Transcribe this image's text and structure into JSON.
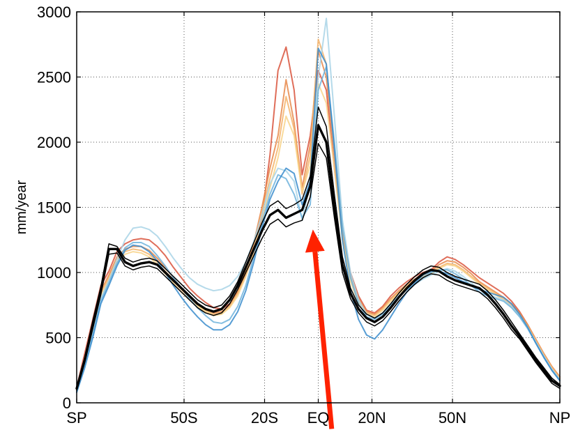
{
  "chart_data": {
    "type": "line",
    "title": "",
    "xlabel": "",
    "ylabel": "mm/year",
    "xlim": [
      -90,
      90
    ],
    "ylim": [
      0,
      3000
    ],
    "grid": "dotted",
    "x_ticks": [
      {
        "value": -90,
        "label": "SP"
      },
      {
        "value": -50,
        "label": "50S"
      },
      {
        "value": -20,
        "label": "20S"
      },
      {
        "value": 0,
        "label": "EQ"
      },
      {
        "value": 20,
        "label": "20N"
      },
      {
        "value": 50,
        "label": "50N"
      },
      {
        "value": 90,
        "label": "NP"
      }
    ],
    "y_ticks": [
      0,
      500,
      1000,
      1500,
      2000,
      2500,
      3000
    ],
    "x": [
      -90,
      -87,
      -84,
      -81,
      -78,
      -75,
      -72,
      -69,
      -66,
      -63,
      -60,
      -57,
      -54,
      -51,
      -48,
      -45,
      -42,
      -39,
      -36,
      -33,
      -30,
      -27,
      -24,
      -21,
      -18,
      -15,
      -12,
      -9,
      -6,
      -3,
      0,
      3,
      6,
      9,
      12,
      15,
      18,
      21,
      24,
      27,
      30,
      33,
      36,
      39,
      42,
      45,
      48,
      51,
      54,
      57,
      60,
      63,
      66,
      69,
      72,
      75,
      78,
      81,
      84,
      87,
      90
    ],
    "series": [
      {
        "color": "#d9533c",
        "values": [
          120,
          380,
          640,
          900,
          1010,
          1160,
          1220,
          1250,
          1260,
          1250,
          1200,
          1130,
          1040,
          960,
          880,
          820,
          770,
          730,
          720,
          760,
          850,
          980,
          1140,
          1420,
          1900,
          2550,
          2730,
          2400,
          1750,
          2050,
          2550,
          2400,
          1800,
          1300,
          1000,
          820,
          710,
          690,
          740,
          820,
          880,
          930,
          970,
          1000,
          1020,
          1080,
          1120,
          1100,
          1060,
          1010,
          960,
          920,
          880,
          840,
          780,
          700,
          600,
          480,
          360,
          260,
          180
        ]
      },
      {
        "color": "#e8884a",
        "values": [
          110,
          350,
          600,
          860,
          980,
          1120,
          1180,
          1200,
          1200,
          1170,
          1110,
          1040,
          960,
          880,
          810,
          760,
          720,
          690,
          700,
          750,
          860,
          1020,
          1230,
          1500,
          1800,
          2050,
          2480,
          2150,
          1650,
          1980,
          2700,
          2500,
          1900,
          1300,
          980,
          800,
          700,
          680,
          730,
          800,
          860,
          910,
          950,
          990,
          1010,
          1060,
          1090,
          1080,
          1040,
          990,
          930,
          890,
          850,
          810,
          760,
          690,
          600,
          490,
          380,
          280,
          200
        ]
      },
      {
        "color": "#f4b36a",
        "values": [
          105,
          330,
          580,
          840,
          960,
          1100,
          1160,
          1180,
          1170,
          1140,
          1080,
          1010,
          940,
          870,
          800,
          750,
          710,
          680,
          690,
          740,
          840,
          1000,
          1200,
          1460,
          1720,
          1960,
          2350,
          2100,
          1600,
          1900,
          2790,
          2600,
          1950,
          1320,
          960,
          780,
          690,
          670,
          720,
          790,
          850,
          900,
          940,
          980,
          1000,
          1040,
          1070,
          1060,
          1020,
          970,
          920,
          880,
          840,
          800,
          750,
          680,
          590,
          480,
          370,
          270,
          190
        ]
      },
      {
        "color": "#f8d48a",
        "values": [
          100,
          320,
          560,
          820,
          940,
          1080,
          1140,
          1160,
          1150,
          1120,
          1060,
          990,
          920,
          850,
          790,
          740,
          700,
          670,
          680,
          730,
          820,
          970,
          1160,
          1400,
          1650,
          1880,
          2200,
          2050,
          1620,
          1820,
          2450,
          2300,
          1800,
          1250,
          930,
          760,
          680,
          660,
          710,
          780,
          840,
          890,
          930,
          970,
          990,
          1030,
          1060,
          1050,
          1010,
          960,
          910,
          870,
          830,
          790,
          740,
          670,
          580,
          470,
          360,
          260,
          180
        ]
      },
      {
        "color": "#a8d4e6",
        "values": [
          90,
          300,
          540,
          800,
          940,
          1100,
          1250,
          1340,
          1350,
          1330,
          1280,
          1200,
          1110,
          1030,
          960,
          910,
          880,
          860,
          870,
          900,
          970,
          1080,
          1240,
          1440,
          1680,
          1800,
          1780,
          1700,
          1400,
          1700,
          2500,
          2950,
          2200,
          1400,
          1000,
          790,
          680,
          650,
          690,
          760,
          820,
          870,
          910,
          950,
          980,
          1010,
          1030,
          1010,
          970,
          920,
          870,
          840,
          810,
          790,
          740,
          670,
          580,
          470,
          360,
          260,
          180
        ]
      },
      {
        "color": "#6fb3dc",
        "values": [
          85,
          290,
          520,
          780,
          920,
          1070,
          1190,
          1230,
          1230,
          1200,
          1130,
          1050,
          960,
          880,
          800,
          730,
          670,
          620,
          610,
          640,
          740,
          900,
          1120,
          1380,
          1600,
          1750,
          1720,
          1600,
          1420,
          1520,
          2400,
          2580,
          2000,
          1350,
          960,
          760,
          660,
          640,
          680,
          750,
          810,
          870,
          910,
          960,
          1000,
          1020,
          1020,
          990,
          950,
          900,
          850,
          820,
          800,
          780,
          730,
          660,
          570,
          460,
          350,
          250,
          170
        ]
      },
      {
        "color": "#3a8ccd",
        "values": [
          80,
          270,
          500,
          760,
          900,
          1050,
          1170,
          1210,
          1200,
          1160,
          1090,
          1000,
          900,
          810,
          730,
          660,
          600,
          560,
          560,
          600,
          700,
          860,
          1080,
          1340,
          1560,
          1700,
          1800,
          1760,
          1520,
          1700,
          2720,
          2600,
          1950,
          1250,
          860,
          640,
          520,
          490,
          560,
          660,
          760,
          850,
          920,
          980,
          1010,
          1010,
          990,
          960,
          930,
          900,
          870,
          850,
          830,
          810,
          760,
          680,
          580,
          460,
          350,
          250,
          170
        ]
      },
      {
        "color": "#000000",
        "width": 3.4,
        "values": [
          110,
          330,
          600,
          860,
          1180,
          1180,
          1080,
          1050,
          1070,
          1080,
          1060,
          1000,
          940,
          880,
          820,
          760,
          720,
          700,
          720,
          790,
          900,
          1040,
          1180,
          1320,
          1440,
          1480,
          1420,
          1450,
          1480,
          1660,
          2130,
          2000,
          1500,
          1060,
          840,
          720,
          650,
          620,
          660,
          730,
          810,
          880,
          940,
          990,
          1020,
          1010,
          970,
          940,
          920,
          900,
          880,
          830,
          760,
          680,
          590,
          510,
          420,
          330,
          250,
          170,
          130
        ]
      },
      {
        "color": "#000000",
        "width": 1.5,
        "values": [
          125,
          350,
          630,
          890,
          1220,
          1200,
          1110,
          1080,
          1100,
          1110,
          1090,
          1030,
          970,
          910,
          850,
          790,
          750,
          730,
          750,
          820,
          930,
          1080,
          1230,
          1380,
          1510,
          1550,
          1490,
          1520,
          1560,
          1740,
          2270,
          2120,
          1600,
          1120,
          880,
          750,
          680,
          650,
          690,
          760,
          840,
          910,
          970,
          1020,
          1050,
          1040,
          1000,
          970,
          950,
          930,
          910,
          860,
          790,
          710,
          620,
          530,
          440,
          350,
          270,
          190,
          140
        ]
      },
      {
        "color": "#000000",
        "width": 1.5,
        "values": [
          95,
          310,
          570,
          830,
          1140,
          1150,
          1050,
          1020,
          1040,
          1050,
          1030,
          970,
          910,
          850,
          790,
          730,
          690,
          670,
          690,
          760,
          870,
          1000,
          1130,
          1260,
          1370,
          1410,
          1350,
          1380,
          1400,
          1580,
          1990,
          1880,
          1420,
          1000,
          800,
          690,
          620,
          590,
          630,
          700,
          780,
          850,
          910,
          960,
          990,
          980,
          940,
          910,
          890,
          870,
          850,
          800,
          730,
          650,
          560,
          490,
          400,
          310,
          230,
          150,
          110
        ]
      }
    ],
    "annotation": {
      "type": "arrow",
      "color": "#ff2200",
      "from": [
        5,
        -200
      ],
      "to": [
        -2,
        1330
      ]
    }
  }
}
